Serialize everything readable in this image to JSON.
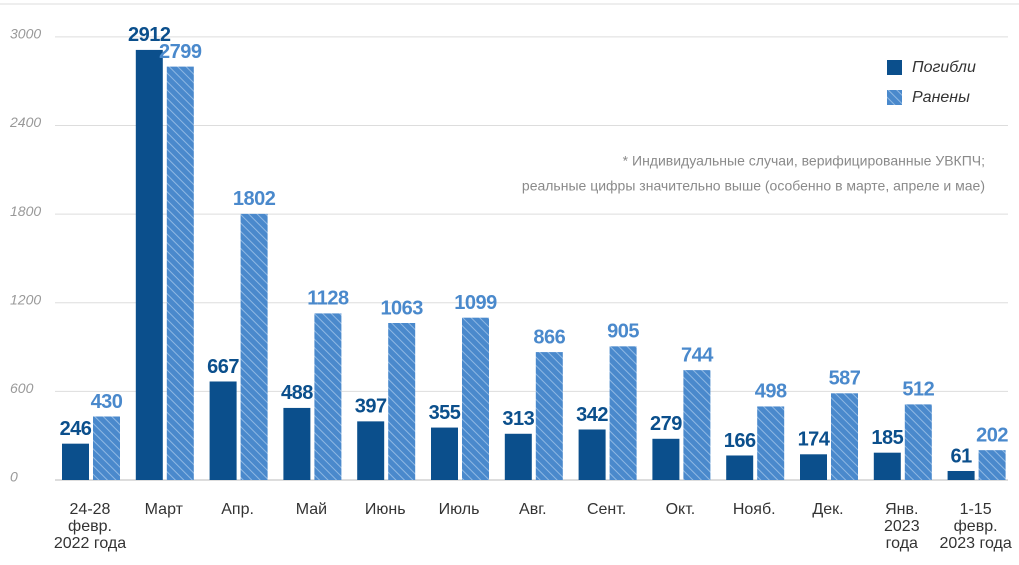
{
  "chart_data": {
    "type": "bar",
    "categories": [
      "24-28\nфевр.\n2022 года",
      "Март",
      "Апр.",
      "Май",
      "Июнь",
      "Июль",
      "Авг.",
      "Сент.",
      "Окт.",
      "Нояб.",
      "Дек.",
      "Янв.\n2023\nгода",
      "1-15\nфевр.\n2023 года"
    ],
    "series": [
      {
        "name": "Погибли",
        "color": "#0b4f8c",
        "values": [
          246,
          2912,
          667,
          488,
          397,
          355,
          313,
          342,
          279,
          166,
          174,
          185,
          61
        ]
      },
      {
        "name": "Ранены",
        "color": "#4a89cc",
        "values": [
          430,
          2799,
          1802,
          1128,
          1063,
          1099,
          866,
          905,
          744,
          498,
          587,
          512,
          202
        ]
      }
    ],
    "ylim": [
      0,
      3250
    ],
    "yticks": [
      0,
      600,
      1200,
      1800,
      2400,
      3000
    ],
    "grid": true,
    "legend": "top-right",
    "annotations": [
      "* Индивидуальные случаи, верифицированные УВКПЧ;",
      "реальные цифры значительно выше (особенно в марте, апреле и мае)"
    ]
  }
}
